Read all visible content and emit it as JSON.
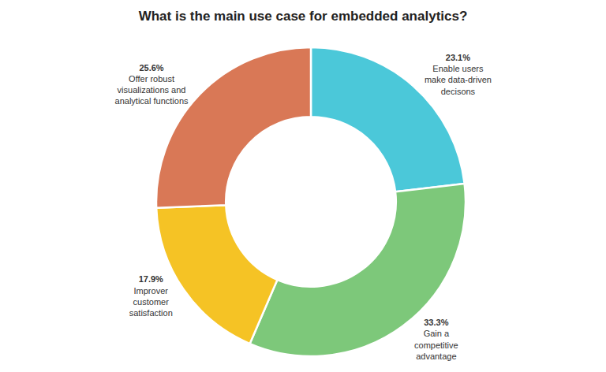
{
  "chart_data": {
    "type": "donut",
    "title": "What is the main use case for embedded analytics?",
    "categories": [
      "Enable users\nmake data-driven\ndecisons",
      "Gain a\ncompetitive\nadvantage",
      "Improver\ncustomer\nsatisfaction",
      "Offer robust\nvisualizations and\nanalytical functions"
    ],
    "values": [
      23.1,
      33.3,
      17.9,
      25.6
    ],
    "value_labels": [
      "23.1%",
      "33.3%",
      "17.9%",
      "25.6%"
    ],
    "colors": [
      "#4BC8D9",
      "#7DC87A",
      "#F5C325",
      "#D97856"
    ],
    "data_labels": true
  }
}
